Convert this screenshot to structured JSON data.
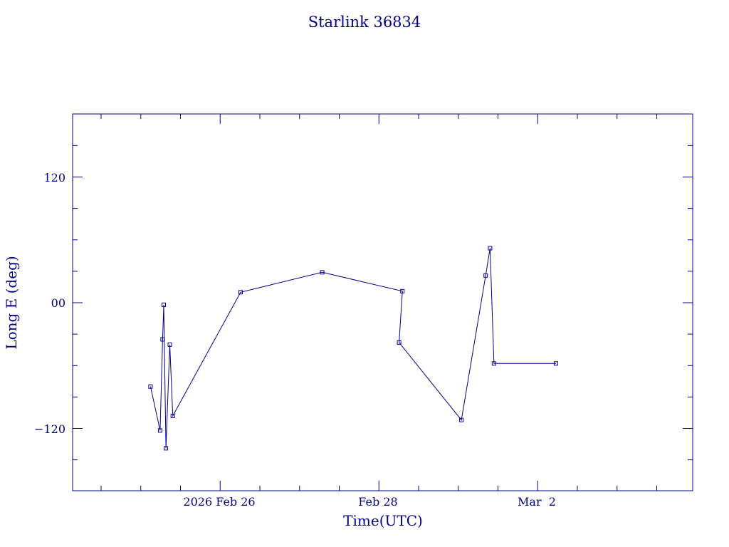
{
  "chart_data": {
    "type": "line",
    "title": "Starlink 36834",
    "xlabel": "Time(UTC)",
    "ylabel": "Long E (deg)",
    "x_tick_labels": [
      "2026 Feb 26",
      "Feb 28",
      "Mar  2"
    ],
    "y_tick_labels": [
      "120",
      "00",
      "−120"
    ],
    "ylim": [
      -180,
      180
    ],
    "xlim": [
      "2026-02-25 00:00",
      "2026-03-04 00:00"
    ],
    "grid": false,
    "color": "#00008b",
    "marker": "square",
    "series": [
      {
        "x": [
          "2026-02-25 21:30",
          "2026-02-26 00:25",
          "2026-02-26 01:10",
          "2026-02-26 01:30",
          "2026-02-26 02:10",
          "2026-02-26 03:20",
          "2026-02-26 04:15",
          "2026-02-27 00:45",
          "2026-02-28 01:25",
          "2026-02-29 01:40",
          "2026-03-01 00:40",
          "2026-03-01 19:30",
          "2026-03-02 02:50",
          "2026-03-02 04:10",
          "2026-03-02 05:20",
          "2026-03-03 00:05"
        ],
        "values": [
          -80,
          -122,
          -35,
          -2,
          -139,
          -40,
          -108,
          10,
          29,
          11,
          -38,
          -112,
          26,
          52,
          -58,
          -58
        ]
      }
    ]
  }
}
